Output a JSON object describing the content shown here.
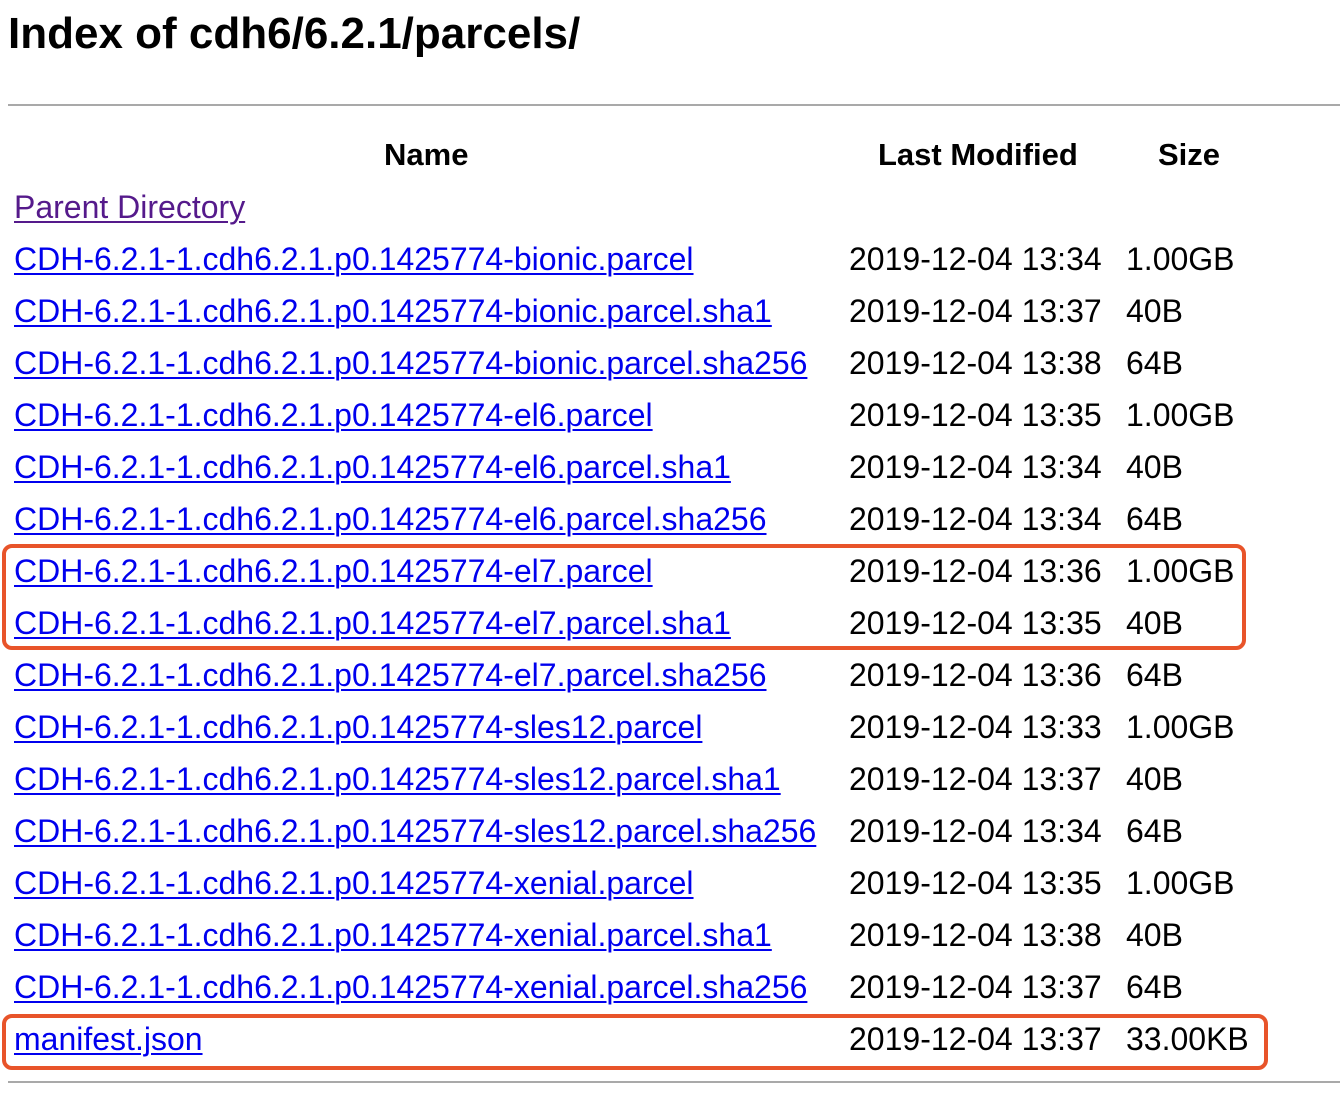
{
  "page": {
    "title": "Index of cdh6/6.2.1/parcels/"
  },
  "table": {
    "headers": {
      "name": "Name",
      "last_modified": "Last Modified",
      "size": "Size"
    },
    "parent_directory": "Parent Directory",
    "rows": [
      {
        "name": "CDH-6.2.1-1.cdh6.2.1.p0.1425774-bionic.parcel",
        "modified": "2019-12-04 13:34",
        "size": "1.00GB"
      },
      {
        "name": "CDH-6.2.1-1.cdh6.2.1.p0.1425774-bionic.parcel.sha1",
        "modified": "2019-12-04 13:37",
        "size": "40B"
      },
      {
        "name": "CDH-6.2.1-1.cdh6.2.1.p0.1425774-bionic.parcel.sha256",
        "modified": "2019-12-04 13:38",
        "size": "64B"
      },
      {
        "name": "CDH-6.2.1-1.cdh6.2.1.p0.1425774-el6.parcel",
        "modified": "2019-12-04 13:35",
        "size": "1.00GB"
      },
      {
        "name": "CDH-6.2.1-1.cdh6.2.1.p0.1425774-el6.parcel.sha1",
        "modified": "2019-12-04 13:34",
        "size": "40B"
      },
      {
        "name": "CDH-6.2.1-1.cdh6.2.1.p0.1425774-el6.parcel.sha256",
        "modified": "2019-12-04 13:34",
        "size": "64B"
      },
      {
        "name": "CDH-6.2.1-1.cdh6.2.1.p0.1425774-el7.parcel",
        "modified": "2019-12-04 13:36",
        "size": "1.00GB"
      },
      {
        "name": "CDH-6.2.1-1.cdh6.2.1.p0.1425774-el7.parcel.sha1",
        "modified": "2019-12-04 13:35",
        "size": "40B"
      },
      {
        "name": "CDH-6.2.1-1.cdh6.2.1.p0.1425774-el7.parcel.sha256",
        "modified": "2019-12-04 13:36",
        "size": "64B"
      },
      {
        "name": "CDH-6.2.1-1.cdh6.2.1.p0.1425774-sles12.parcel",
        "modified": "2019-12-04 13:33",
        "size": "1.00GB"
      },
      {
        "name": "CDH-6.2.1-1.cdh6.2.1.p0.1425774-sles12.parcel.sha1",
        "modified": "2019-12-04 13:37",
        "size": "40B"
      },
      {
        "name": "CDH-6.2.1-1.cdh6.2.1.p0.1425774-sles12.parcel.sha256",
        "modified": "2019-12-04 13:34",
        "size": "64B"
      },
      {
        "name": "CDH-6.2.1-1.cdh6.2.1.p0.1425774-xenial.parcel",
        "modified": "2019-12-04 13:35",
        "size": "1.00GB"
      },
      {
        "name": "CDH-6.2.1-1.cdh6.2.1.p0.1425774-xenial.parcel.sha1",
        "modified": "2019-12-04 13:38",
        "size": "40B"
      },
      {
        "name": "CDH-6.2.1-1.cdh6.2.1.p0.1425774-xenial.parcel.sha256",
        "modified": "2019-12-04 13:37",
        "size": "64B"
      },
      {
        "name": "manifest.json",
        "modified": "2019-12-04 13:37",
        "size": "33.00KB"
      }
    ]
  },
  "colors": {
    "link": "#0000ee",
    "visited_link": "#551a8b",
    "highlight": "#e8542a",
    "rule": "#a9a9a9"
  }
}
